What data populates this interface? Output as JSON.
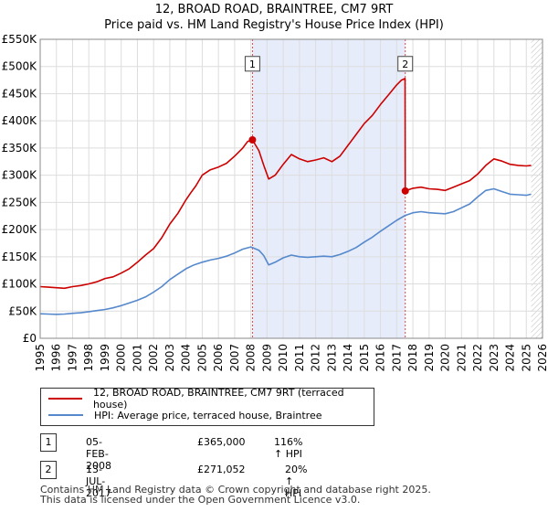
{
  "chart_data": {
    "type": "line",
    "title": "12, BROAD ROAD, BRAINTREE, CM7 9RT",
    "subtitle": "Price paid vs. HM Land Registry's House Price Index (HPI)",
    "xlim": [
      1995,
      2026
    ],
    "ylim": [
      0,
      550000
    ],
    "yticks": [
      {
        "value": 0,
        "label": "£0"
      },
      {
        "value": 50000,
        "label": "£50K"
      },
      {
        "value": 100000,
        "label": "£100K"
      },
      {
        "value": 150000,
        "label": "£150K"
      },
      {
        "value": 200000,
        "label": "£200K"
      },
      {
        "value": 250000,
        "label": "£250K"
      },
      {
        "value": 300000,
        "label": "£300K"
      },
      {
        "value": 350000,
        "label": "£350K"
      },
      {
        "value": 400000,
        "label": "£400K"
      },
      {
        "value": 450000,
        "label": "£450K"
      },
      {
        "value": 500000,
        "label": "£500K"
      },
      {
        "value": 550000,
        "label": "£550K"
      }
    ],
    "xticks": [
      "1995",
      "1996",
      "1997",
      "1998",
      "1999",
      "2000",
      "2001",
      "2002",
      "2003",
      "2004",
      "2005",
      "2006",
      "2007",
      "2008",
      "2009",
      "2010",
      "2011",
      "2012",
      "2013",
      "2014",
      "2015",
      "2016",
      "2017",
      "2018",
      "2019",
      "2020",
      "2021",
      "2022",
      "2023",
      "2024",
      "2025",
      "2026"
    ],
    "grid": true,
    "shaded_region": [
      2008.1,
      2017.53
    ],
    "data_end": 2025.3,
    "series": [
      {
        "name": "12, BROAD ROAD, BRAINTREE, CM7 9RT (terraced house)",
        "color": "#cc0000",
        "points": [
          [
            1995.0,
            95000
          ],
          [
            1995.5,
            94000
          ],
          [
            1996.0,
            93000
          ],
          [
            1996.5,
            92000
          ],
          [
            1997.0,
            95000
          ],
          [
            1997.5,
            97000
          ],
          [
            1998.0,
            100000
          ],
          [
            1998.5,
            104000
          ],
          [
            1999.0,
            110000
          ],
          [
            1999.5,
            113000
          ],
          [
            2000.0,
            120000
          ],
          [
            2000.5,
            128000
          ],
          [
            2001.0,
            140000
          ],
          [
            2001.5,
            153000
          ],
          [
            2002.0,
            165000
          ],
          [
            2002.5,
            185000
          ],
          [
            2003.0,
            210000
          ],
          [
            2003.5,
            230000
          ],
          [
            2004.0,
            255000
          ],
          [
            2004.3,
            268000
          ],
          [
            2004.6,
            280000
          ],
          [
            2005.0,
            300000
          ],
          [
            2005.5,
            310000
          ],
          [
            2006.0,
            315000
          ],
          [
            2006.5,
            322000
          ],
          [
            2007.0,
            335000
          ],
          [
            2007.5,
            350000
          ],
          [
            2007.8,
            362000
          ],
          [
            2008.1,
            365000
          ],
          [
            2008.5,
            345000
          ],
          [
            2008.8,
            318000
          ],
          [
            2009.1,
            293000
          ],
          [
            2009.5,
            300000
          ],
          [
            2010.0,
            320000
          ],
          [
            2010.5,
            338000
          ],
          [
            2011.0,
            330000
          ],
          [
            2011.5,
            325000
          ],
          [
            2012.0,
            328000
          ],
          [
            2012.5,
            332000
          ],
          [
            2013.0,
            325000
          ],
          [
            2013.5,
            335000
          ],
          [
            2014.0,
            355000
          ],
          [
            2014.5,
            375000
          ],
          [
            2015.0,
            395000
          ],
          [
            2015.5,
            410000
          ],
          [
            2016.0,
            430000
          ],
          [
            2016.5,
            448000
          ],
          [
            2017.0,
            466000
          ],
          [
            2017.3,
            475000
          ],
          [
            2017.52,
            478000
          ],
          [
            2017.53,
            271052
          ],
          [
            2017.8,
            274000
          ],
          [
            2018.0,
            276000
          ],
          [
            2018.5,
            278000
          ],
          [
            2019.0,
            275000
          ],
          [
            2019.5,
            274000
          ],
          [
            2020.0,
            272000
          ],
          [
            2020.5,
            278000
          ],
          [
            2021.0,
            284000
          ],
          [
            2021.5,
            290000
          ],
          [
            2022.0,
            302000
          ],
          [
            2022.5,
            318000
          ],
          [
            2023.0,
            330000
          ],
          [
            2023.5,
            326000
          ],
          [
            2024.0,
            320000
          ],
          [
            2024.5,
            318000
          ],
          [
            2025.0,
            317000
          ],
          [
            2025.3,
            318000
          ]
        ]
      },
      {
        "name": "HPI: Average price, terraced house, Braintree",
        "color": "#5588cc",
        "points": [
          [
            1995.0,
            45000
          ],
          [
            1995.5,
            44500
          ],
          [
            1996.0,
            44000
          ],
          [
            1996.5,
            44500
          ],
          [
            1997.0,
            46000
          ],
          [
            1997.5,
            47000
          ],
          [
            1998.0,
            49000
          ],
          [
            1998.5,
            51000
          ],
          [
            1999.0,
            53000
          ],
          [
            1999.5,
            56000
          ],
          [
            2000.0,
            60000
          ],
          [
            2000.5,
            65000
          ],
          [
            2001.0,
            70000
          ],
          [
            2001.5,
            76000
          ],
          [
            2002.0,
            85000
          ],
          [
            2002.5,
            95000
          ],
          [
            2003.0,
            108000
          ],
          [
            2003.5,
            118000
          ],
          [
            2004.0,
            128000
          ],
          [
            2004.5,
            135000
          ],
          [
            2005.0,
            140000
          ],
          [
            2005.5,
            144000
          ],
          [
            2006.0,
            147000
          ],
          [
            2006.5,
            151000
          ],
          [
            2007.0,
            157000
          ],
          [
            2007.5,
            164000
          ],
          [
            2008.0,
            168000
          ],
          [
            2008.5,
            162000
          ],
          [
            2008.8,
            152000
          ],
          [
            2009.1,
            135000
          ],
          [
            2009.5,
            140000
          ],
          [
            2010.0,
            148000
          ],
          [
            2010.5,
            153000
          ],
          [
            2011.0,
            150000
          ],
          [
            2011.5,
            149000
          ],
          [
            2012.0,
            150000
          ],
          [
            2012.5,
            151000
          ],
          [
            2013.0,
            150000
          ],
          [
            2013.5,
            154000
          ],
          [
            2014.0,
            160000
          ],
          [
            2014.5,
            167000
          ],
          [
            2015.0,
            177000
          ],
          [
            2015.5,
            186000
          ],
          [
            2016.0,
            197000
          ],
          [
            2016.5,
            207000
          ],
          [
            2017.0,
            217000
          ],
          [
            2017.53,
            226000
          ],
          [
            2018.0,
            231000
          ],
          [
            2018.5,
            233000
          ],
          [
            2019.0,
            231000
          ],
          [
            2019.5,
            230000
          ],
          [
            2020.0,
            229000
          ],
          [
            2020.5,
            233000
          ],
          [
            2021.0,
            240000
          ],
          [
            2021.5,
            247000
          ],
          [
            2022.0,
            260000
          ],
          [
            2022.5,
            272000
          ],
          [
            2023.0,
            275000
          ],
          [
            2023.5,
            270000
          ],
          [
            2024.0,
            265000
          ],
          [
            2024.5,
            264000
          ],
          [
            2025.0,
            263000
          ],
          [
            2025.3,
            265000
          ]
        ]
      }
    ],
    "annotations": [
      {
        "label": "1",
        "x": 2008.1,
        "y": 365000,
        "marker_y": 505000
      },
      {
        "label": "2",
        "x": 2017.53,
        "y": 271052,
        "marker_y": 505000
      }
    ]
  },
  "legend": {
    "entries": [
      {
        "label": "12, BROAD ROAD, BRAINTREE, CM7 9RT (terraced house)",
        "color": "#cc0000"
      },
      {
        "label": "HPI: Average price, terraced house, Braintree",
        "color": "#5588cc"
      }
    ]
  },
  "transactions": [
    {
      "num": "1",
      "date": "05-FEB-2008",
      "price": "£365,000",
      "hpi": "116% ↑ HPI"
    },
    {
      "num": "2",
      "date": "13-JUL-2017",
      "price": "£271,052",
      "hpi": "20% ↑ HPI"
    }
  ],
  "footer": {
    "line1": "Contains HM Land Registry data © Crown copyright and database right 2025.",
    "line2": "This data is licensed under the Open Government Licence v3.0."
  }
}
